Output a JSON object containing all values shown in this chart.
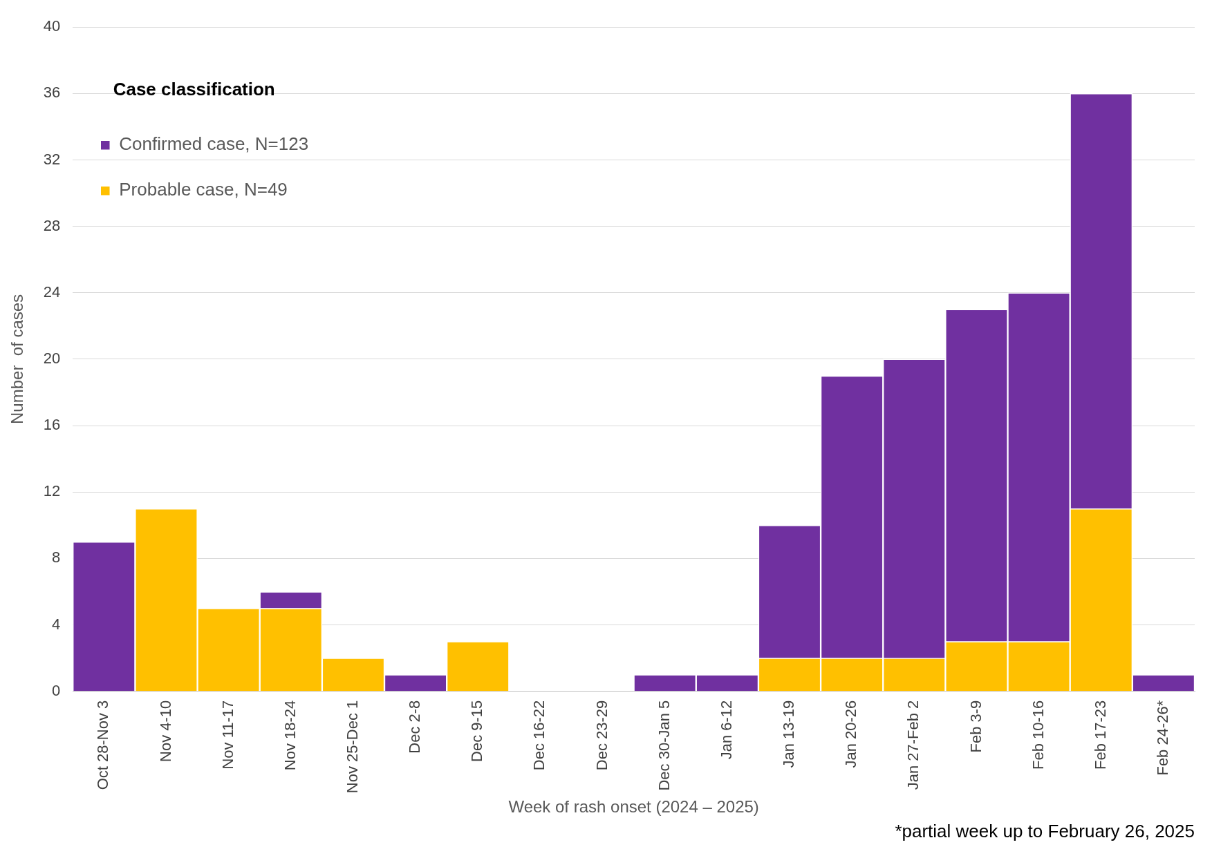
{
  "chart_data": {
    "type": "bar",
    "stacked": true,
    "categories": [
      "Oct 28-Nov 3",
      "Nov 4-10",
      "Nov 11-17",
      "Nov 18-24",
      "Nov 25-Dec 1",
      "Dec 2-8",
      "Dec 9-15",
      "Dec 16-22",
      "Dec 23-29",
      "Dec 30-Jan 5",
      "Jan 6-12",
      "Jan 13-19",
      "Jan 20-26",
      "Jan 27-Feb 2",
      "Feb 3-9",
      "Feb 10-16",
      "Feb 17-23",
      "Feb 24-26*"
    ],
    "series": [
      {
        "name": "Probable case, N=49",
        "color": "#ffc000",
        "values": [
          0,
          11,
          5,
          5,
          2,
          0,
          3,
          0,
          0,
          0,
          0,
          2,
          2,
          2,
          3,
          3,
          11,
          0
        ]
      },
      {
        "name": "Confirmed case, N=123",
        "color": "#7030a0",
        "values": [
          9,
          0,
          0,
          1,
          0,
          1,
          0,
          0,
          0,
          1,
          1,
          8,
          17,
          18,
          20,
          21,
          25,
          1
        ]
      }
    ],
    "xlabel": "Week of rash onset (2024 – 2025)",
    "ylabel": "Number  of cases",
    "legend_title": "Case classification",
    "legend": "top left",
    "ylim": [
      0,
      40
    ],
    "yticks": [
      0,
      4,
      8,
      12,
      16,
      20,
      24,
      28,
      32,
      36,
      40
    ],
    "grid": "y",
    "annotations": [
      "*partial week up to February 26, 2025"
    ]
  }
}
